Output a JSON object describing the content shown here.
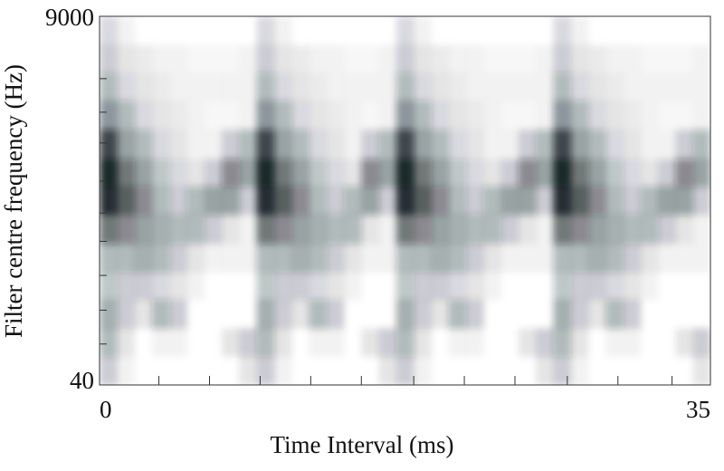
{
  "chart_data": {
    "type": "heatmap",
    "xlabel": "Time Interval (ms)",
    "ylabel": "Filter centre frequency (Hz)",
    "xlim": [
      0,
      35
    ],
    "xticks": [
      0,
      35
    ],
    "x_minor_ticks": [
      3.4,
      6.3,
      9.2,
      12.1,
      15.0,
      18.0,
      20.9,
      23.8,
      26.8,
      29.7,
      32.8
    ],
    "ylim": [
      40,
      9000
    ],
    "yticks": [
      40,
      9000
    ],
    "yscale": "log",
    "y_minor_ticks": [
      3600,
      2200,
      1400,
      800,
      500,
      330,
      200,
      120,
      73
    ],
    "color": "#0d1a1f",
    "x_bins": [
      0,
      1,
      2,
      3,
      4,
      5,
      6,
      7,
      8,
      9,
      10,
      11,
      12,
      13,
      14,
      15,
      16,
      17,
      18,
      19,
      20,
      21,
      22,
      23,
      24,
      25,
      26,
      27,
      28,
      29,
      30,
      31,
      32,
      33,
      34,
      35
    ],
    "y_bins": [
      9000,
      5900,
      3900,
      2600,
      1700,
      1100,
      740,
      490,
      320,
      210,
      140,
      92,
      61,
      40
    ],
    "values": [
      [
        0.15,
        0.05,
        0,
        0,
        0,
        0,
        0,
        0,
        0,
        0.15,
        0.05,
        0,
        0,
        0,
        0,
        0,
        0,
        0.15,
        0.05,
        0,
        0,
        0,
        0,
        0,
        0,
        0,
        0.15,
        0.05,
        0,
        0,
        0,
        0,
        0,
        0,
        0
      ],
      [
        0.2,
        0.1,
        0.08,
        0.05,
        0.05,
        0.03,
        0.03,
        0.03,
        0.05,
        0.2,
        0.1,
        0.08,
        0.05,
        0.05,
        0.03,
        0.03,
        0.05,
        0.2,
        0.1,
        0.08,
        0.05,
        0.05,
        0.03,
        0.03,
        0.03,
        0.05,
        0.2,
        0.1,
        0.08,
        0.05,
        0.05,
        0.03,
        0.03,
        0.03,
        0.05
      ],
      [
        0.3,
        0.15,
        0.1,
        0.08,
        0.05,
        0.05,
        0.05,
        0.05,
        0.05,
        0.3,
        0.15,
        0.1,
        0.08,
        0.05,
        0.05,
        0.05,
        0.05,
        0.3,
        0.15,
        0.1,
        0.08,
        0.05,
        0.05,
        0.05,
        0.05,
        0.05,
        0.3,
        0.15,
        0.1,
        0.08,
        0.05,
        0.05,
        0.05,
        0.05,
        0.05
      ],
      [
        0.45,
        0.3,
        0.15,
        0.1,
        0.08,
        0.05,
        0.03,
        0.03,
        0.05,
        0.45,
        0.3,
        0.15,
        0.1,
        0.08,
        0.05,
        0.03,
        0.05,
        0.45,
        0.3,
        0.15,
        0.1,
        0.08,
        0.05,
        0.03,
        0.03,
        0.05,
        0.45,
        0.3,
        0.15,
        0.1,
        0.08,
        0.05,
        0.03,
        0.03,
        0.05
      ],
      [
        0.8,
        0.4,
        0.3,
        0.15,
        0.1,
        0.05,
        0.05,
        0.2,
        0.3,
        0.8,
        0.4,
        0.3,
        0.15,
        0.1,
        0.05,
        0.2,
        0.3,
        0.8,
        0.4,
        0.3,
        0.15,
        0.1,
        0.05,
        0.05,
        0.2,
        0.3,
        0.8,
        0.4,
        0.3,
        0.15,
        0.1,
        0.05,
        0.05,
        0.2,
        0.3
      ],
      [
        0.95,
        0.6,
        0.4,
        0.25,
        0.15,
        0.1,
        0.2,
        0.5,
        0.4,
        0.95,
        0.6,
        0.4,
        0.25,
        0.15,
        0.1,
        0.5,
        0.4,
        0.95,
        0.6,
        0.4,
        0.25,
        0.15,
        0.1,
        0.2,
        0.5,
        0.4,
        0.95,
        0.6,
        0.4,
        0.25,
        0.15,
        0.1,
        0.2,
        0.5,
        0.4
      ],
      [
        0.9,
        0.7,
        0.5,
        0.3,
        0.2,
        0.3,
        0.4,
        0.4,
        0.2,
        0.9,
        0.7,
        0.5,
        0.3,
        0.2,
        0.3,
        0.4,
        0.2,
        0.9,
        0.7,
        0.5,
        0.3,
        0.2,
        0.3,
        0.4,
        0.4,
        0.2,
        0.9,
        0.7,
        0.5,
        0.3,
        0.2,
        0.3,
        0.4,
        0.4,
        0.2
      ],
      [
        0.6,
        0.5,
        0.4,
        0.35,
        0.3,
        0.3,
        0.2,
        0.1,
        0.05,
        0.6,
        0.5,
        0.4,
        0.35,
        0.3,
        0.3,
        0.1,
        0.05,
        0.6,
        0.5,
        0.4,
        0.35,
        0.3,
        0.3,
        0.2,
        0.1,
        0.05,
        0.6,
        0.5,
        0.4,
        0.35,
        0.3,
        0.3,
        0.2,
        0.1,
        0.05
      ],
      [
        0.3,
        0.3,
        0.35,
        0.3,
        0.2,
        0.1,
        0.05,
        0.05,
        0.05,
        0.3,
        0.3,
        0.35,
        0.3,
        0.2,
        0.1,
        0.05,
        0.05,
        0.3,
        0.3,
        0.35,
        0.3,
        0.2,
        0.1,
        0.05,
        0.05,
        0.05,
        0.3,
        0.3,
        0.35,
        0.3,
        0.2,
        0.1,
        0.05,
        0.05,
        0.05
      ],
      [
        0.25,
        0.2,
        0.2,
        0.15,
        0.1,
        0.05,
        0,
        0,
        0,
        0.25,
        0.2,
        0.2,
        0.15,
        0.1,
        0.05,
        0,
        0,
        0.25,
        0.2,
        0.2,
        0.15,
        0.1,
        0.05,
        0,
        0,
        0,
        0.25,
        0.2,
        0.2,
        0.15,
        0.1,
        0.05,
        0,
        0,
        0
      ],
      [
        0.35,
        0.2,
        0.1,
        0.3,
        0.2,
        0,
        0,
        0,
        0,
        0.35,
        0.2,
        0.1,
        0.3,
        0.2,
        0,
        0,
        0,
        0.35,
        0.2,
        0.1,
        0.3,
        0.2,
        0,
        0,
        0,
        0,
        0.35,
        0.2,
        0.1,
        0.3,
        0.2,
        0,
        0,
        0,
        0
      ],
      [
        0.3,
        0.1,
        0,
        0.05,
        0.05,
        0,
        0,
        0.1,
        0.2,
        0.3,
        0.1,
        0,
        0.05,
        0.05,
        0,
        0.1,
        0.2,
        0.3,
        0.1,
        0,
        0.05,
        0.05,
        0,
        0,
        0.1,
        0.2,
        0.3,
        0.1,
        0,
        0.05,
        0.05,
        0,
        0,
        0.1,
        0.2
      ],
      [
        0.2,
        0.05,
        0,
        0,
        0,
        0,
        0,
        0,
        0.1,
        0.2,
        0.05,
        0,
        0,
        0,
        0,
        0,
        0.1,
        0.2,
        0.05,
        0,
        0,
        0,
        0,
        0,
        0,
        0.1,
        0.2,
        0.05,
        0,
        0,
        0,
        0,
        0,
        0,
        0.1
      ]
    ]
  }
}
